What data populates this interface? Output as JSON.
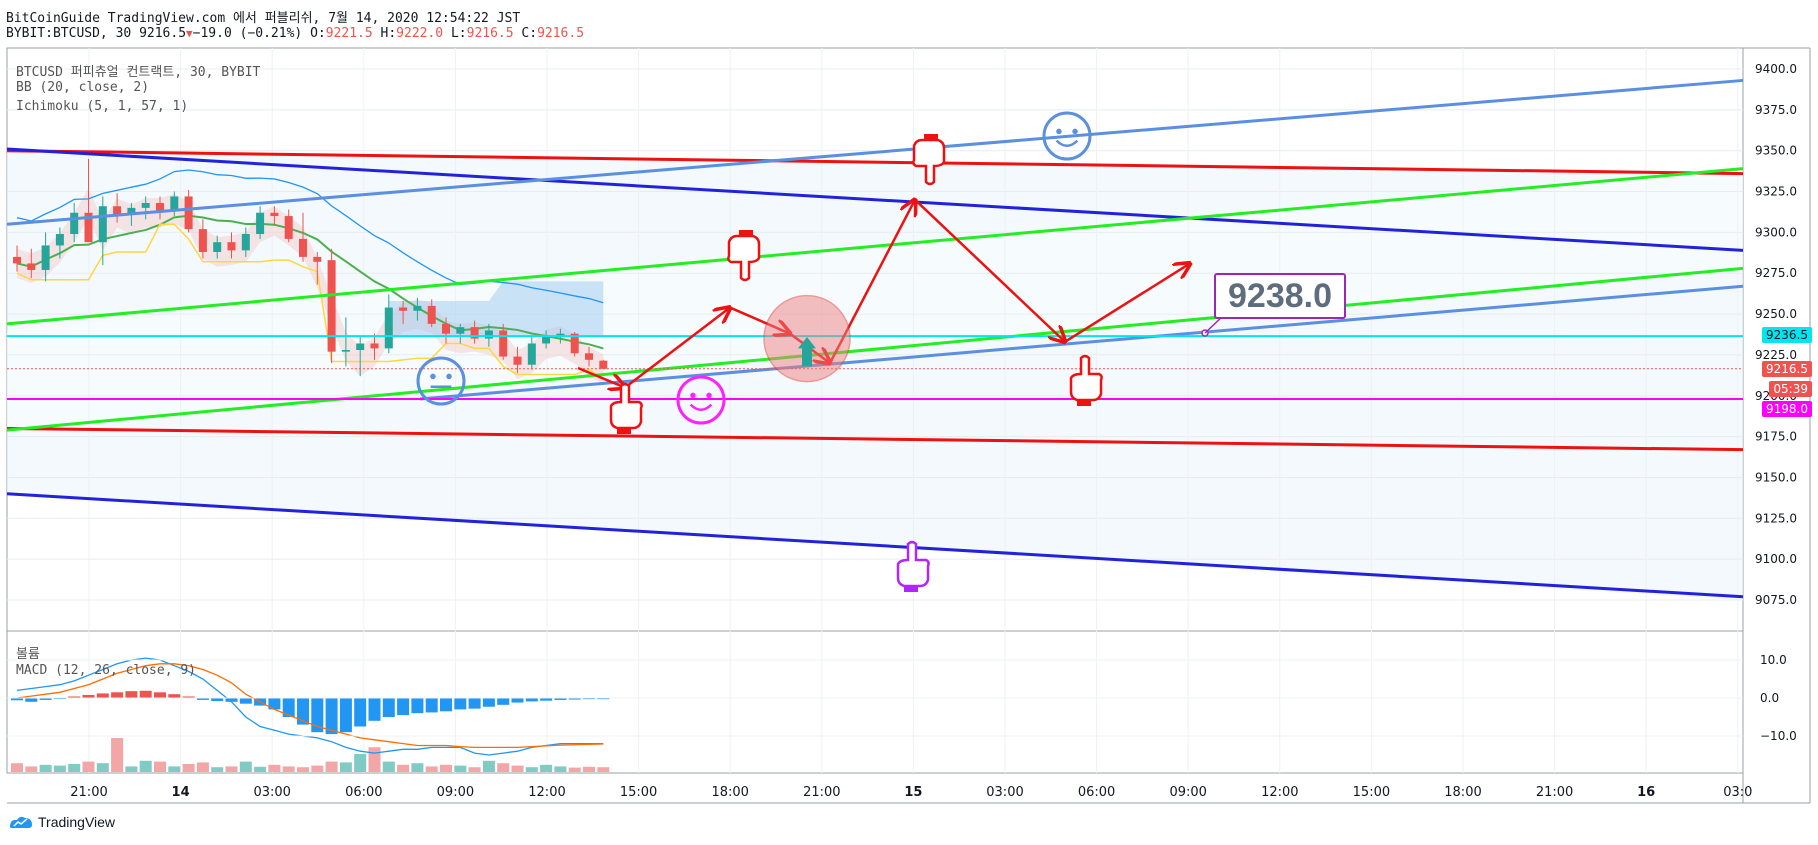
{
  "header": {
    "line1": "BitCoinGuide TradingView.com 에서 퍼블리쉬, 7월 14, 2020 12:54:22 JST",
    "symbol": "BYBIT:BTCUSD, 30",
    "last": "9216.5",
    "change": "−19.0 (−0.21%)",
    "o_label": "O:",
    "o": "9221.5",
    "h_label": "H:",
    "h": "9222.0",
    "l_label": "L:",
    "l": "9216.5",
    "c_label": "C:",
    "c": "9216.5"
  },
  "legend": {
    "title": "BTCUSD 퍼피츄얼 컨트랙트, 30, BYBIT",
    "bb": "BB (20, close, 2)",
    "ichimoku": "Ichimoku (5, 1, 57, 1)"
  },
  "lower_pane": {
    "volume_label": "볼륨",
    "macd_label": "MACD (12, 26, close, 9)"
  },
  "price_tags": {
    "cyan": "9236.5",
    "last": "9216.5",
    "countdown": "05:39",
    "magenta": "9198.0"
  },
  "annotation": "9238.0",
  "footer": {
    "brand": "TradingView"
  },
  "colors": {
    "up": "#26a69a",
    "down": "#ef5350",
    "cyan": "#00e5ee",
    "magenta": "#ff00ff",
    "red_line": "#ee1111",
    "blue_line": "#2222dd",
    "lightblue_line": "#5b8fe0",
    "green_line": "#22ee22",
    "macd": "#2196f3",
    "signal": "#ff6d00"
  },
  "chart_data": {
    "type": "candlestick",
    "symbol": "BYBIT:BTCUSD",
    "timeframe": "30",
    "y_ticks": [
      9400,
      9375,
      9350,
      9325,
      9300,
      9275,
      9250,
      9225,
      9200,
      9175,
      9150,
      9125,
      9100,
      9075
    ],
    "x_ticks": [
      "21:00",
      "14",
      "03:00",
      "06:00",
      "09:00",
      "12:00",
      "15:00",
      "18:00",
      "21:00",
      "15",
      "03:00",
      "06:00",
      "09:00",
      "12:00",
      "15:00",
      "18:00",
      "21:00",
      "16",
      "03:0"
    ],
    "macd_ticks": [
      10.0,
      0.0,
      -10.0
    ],
    "ylim": [
      9061,
      9404
    ],
    "candles": [
      [
        9285,
        9292,
        9276,
        9281
      ],
      [
        9281,
        9290,
        9272,
        9277
      ],
      [
        9277,
        9300,
        9270,
        9292
      ],
      [
        9292,
        9303,
        9284,
        9299
      ],
      [
        9299,
        9318,
        9294,
        9312
      ],
      [
        9312,
        9345,
        9297,
        9294
      ],
      [
        9294,
        9322,
        9280,
        9316
      ],
      [
        9316,
        9324,
        9306,
        9311
      ],
      [
        9311,
        9318,
        9304,
        9315
      ],
      [
        9315,
        9322,
        9308,
        9318
      ],
      [
        9318,
        9322,
        9308,
        9313
      ],
      [
        9313,
        9325,
        9310,
        9322
      ],
      [
        9322,
        9326,
        9300,
        9302
      ],
      [
        9302,
        9308,
        9284,
        9288
      ],
      [
        9288,
        9298,
        9284,
        9294
      ],
      [
        9294,
        9300,
        9284,
        9289
      ],
      [
        9289,
        9303,
        9285,
        9299
      ],
      [
        9299,
        9316,
        9296,
        9312
      ],
      [
        9312,
        9316,
        9304,
        9310
      ],
      [
        9310,
        9314,
        9294,
        9296
      ],
      [
        9296,
        9312,
        9282,
        9285
      ],
      [
        9285,
        9288,
        9268,
        9282
      ],
      [
        9283,
        9290,
        9220,
        9227
      ],
      [
        9227,
        9248,
        9218,
        9228
      ],
      [
        9228,
        9236,
        9212,
        9232
      ],
      [
        9232,
        9238,
        9222,
        9229
      ],
      [
        9229,
        9262,
        9226,
        9254
      ],
      [
        9254,
        9258,
        9244,
        9252
      ],
      [
        9252,
        9260,
        9246,
        9255
      ],
      [
        9255,
        9259,
        9242,
        9244
      ],
      [
        9244,
        9248,
        9232,
        9238
      ],
      [
        9238,
        9244,
        9232,
        9242
      ],
      [
        9242,
        9246,
        9232,
        9235
      ],
      [
        9235,
        9244,
        9230,
        9240
      ],
      [
        9240,
        9244,
        9222,
        9224
      ],
      [
        9224,
        9230,
        9214,
        9219
      ],
      [
        9219,
        9236,
        9216,
        9232
      ],
      [
        9232,
        9240,
        9229,
        9237
      ],
      [
        9237,
        9241,
        9232,
        9238
      ],
      [
        9238,
        9239,
        9224,
        9226
      ],
      [
        9226,
        9230,
        9218,
        9222
      ],
      [
        9221.5,
        9222,
        9216.5,
        9216.5
      ]
    ],
    "series": [
      {
        "name": "BB (20, close, 2)"
      },
      {
        "name": "Ichimoku (5, 1, 57, 1)"
      },
      {
        "name": "MACD (12, 26, close, 9)"
      }
    ],
    "horizontal_levels": [
      9236.5,
      9198.0
    ],
    "annotation_value": 9238.0
  }
}
